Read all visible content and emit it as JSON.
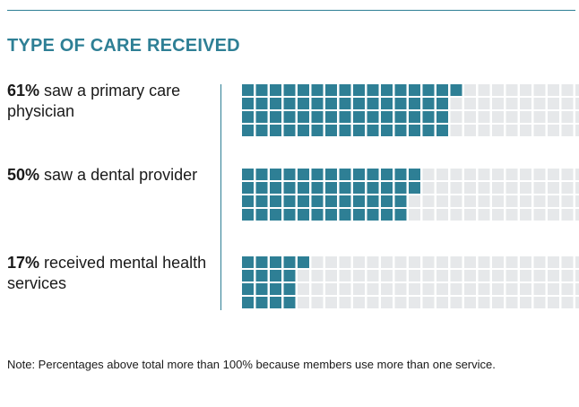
{
  "title": "TYPE OF CARE RECEIVED",
  "colors": {
    "accent": "#2e7f95",
    "filled": "#2e7f95",
    "empty": "#e6e8ea",
    "text": "#1a1a1a"
  },
  "rows": [
    {
      "percent": "61%",
      "text": "saw a primary care physician",
      "value": 61
    },
    {
      "percent": "50%",
      "text": "saw a dental provider",
      "value": 50
    },
    {
      "percent": "17%",
      "text": "received mental health services",
      "value": 17
    }
  ],
  "note": "Note: Percentages above total more than 100% because members use more than one service.",
  "chart_data": {
    "type": "bar",
    "title": "TYPE OF CARE RECEIVED",
    "categories": [
      "saw a primary care physician",
      "saw a dental provider",
      "received mental health services"
    ],
    "values": [
      61,
      50,
      17
    ],
    "ylim": [
      0,
      100
    ],
    "grid": false,
    "legend": "none"
  }
}
